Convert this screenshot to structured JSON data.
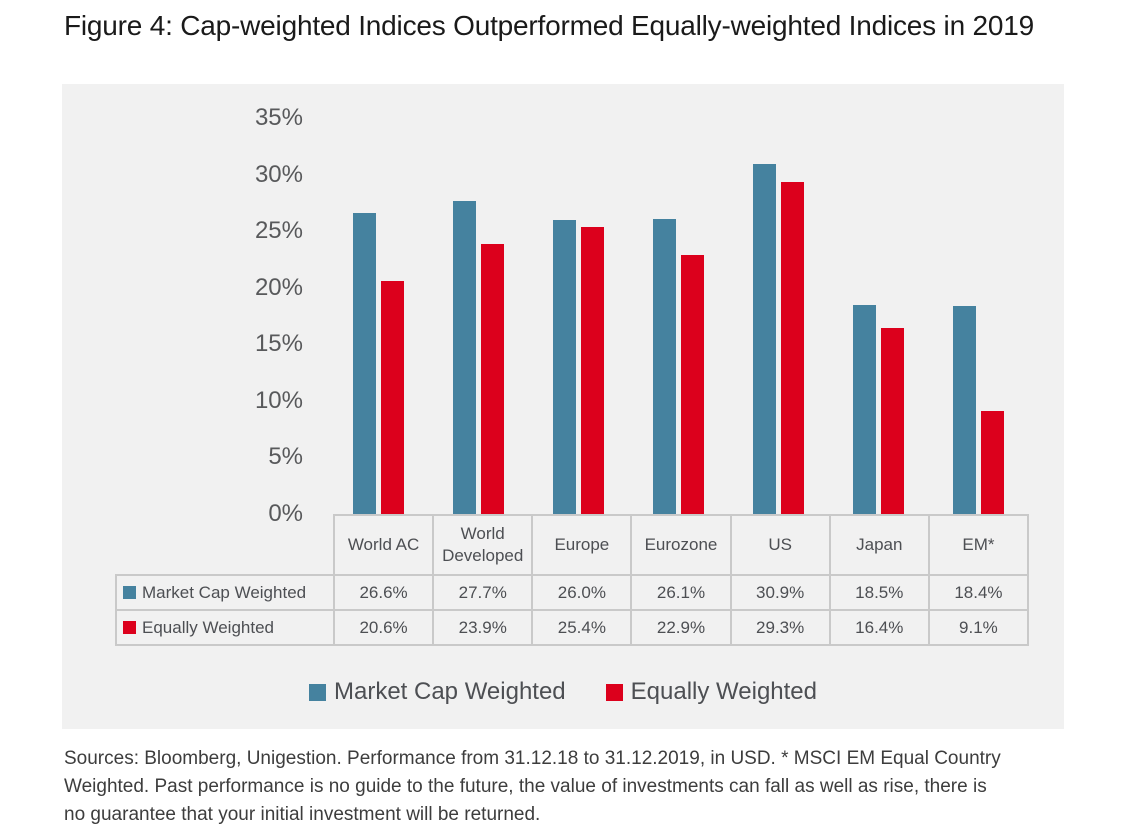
{
  "title": "Figure 4: Cap-weighted Indices Outperformed Equally-weighted Indices in 2019",
  "chart_data": {
    "type": "bar",
    "title": "",
    "xlabel": "",
    "ylabel": "",
    "categories": [
      "World AC",
      "World Developed",
      "Europe",
      "Eurozone",
      "US",
      "Japan",
      "EM*"
    ],
    "series": [
      {
        "name": "Market Cap Weighted",
        "color": "#45829F",
        "values": [
          26.6,
          27.7,
          26.0,
          26.1,
          30.9,
          18.5,
          18.4
        ]
      },
      {
        "name": "Equally Weighted",
        "color": "#DC001C",
        "values": [
          20.6,
          23.9,
          25.4,
          22.9,
          29.3,
          16.4,
          9.1
        ]
      }
    ],
    "value_suffix": "%",
    "ylim": [
      0,
      35
    ],
    "ytick_step": 5,
    "ytick_labels": [
      "35%",
      "30%",
      "25%",
      "20%",
      "15%",
      "10%",
      "5%",
      "0%"
    ],
    "gridlines": false,
    "legend_position": "bottom-center",
    "data_table_shown": true
  },
  "footnote_text": "Sources: Bloomberg, Unigestion. Performance from 31.12.18 to 31.12.2019, in USD. * MSCI EM Equal Country\nWeighted. Past performance is no guide to the future, the value of investments can fall as well as rise, there is\nno guarantee that your initial investment will be returned.",
  "colors": {
    "panel_background": "#F1F1F1",
    "table_border": "#C9C9C9",
    "axis_text": "#58595B",
    "title_text": "#1A1A1A",
    "footnote_text": "#3D3D3D"
  }
}
